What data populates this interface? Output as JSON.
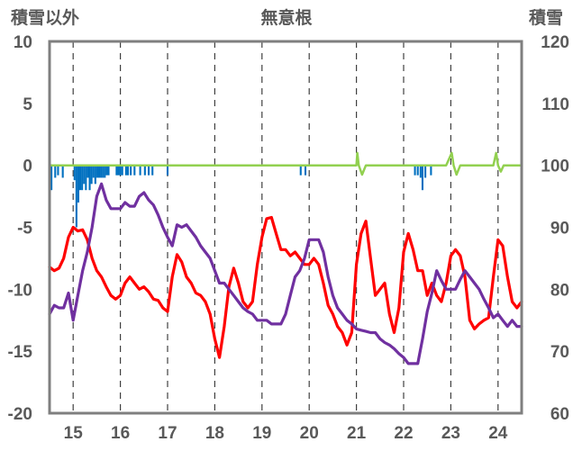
{
  "chart_data": {
    "type": "line",
    "title": "無意根",
    "left_axis": {
      "label": "積雪以外",
      "ylim": [
        -20,
        10
      ],
      "ticks": [
        10,
        5,
        0,
        -5,
        -10,
        -15,
        -20
      ]
    },
    "right_axis": {
      "label": "積雪",
      "ylim": [
        60,
        120
      ],
      "ticks": [
        120,
        110,
        100,
        90,
        80,
        70,
        60
      ]
    },
    "x_axis": {
      "range": [
        14.5,
        24.5
      ],
      "tick_values": [
        15,
        16,
        17,
        18,
        19,
        20,
        21,
        22,
        23,
        24
      ],
      "tick_labels": [
        "15",
        "16",
        "17",
        "18",
        "19",
        "20",
        "21",
        "22",
        "23",
        "24"
      ]
    },
    "grid": "vertical dashed lines at each day",
    "colors": {
      "red": "#ff0000",
      "purple": "#7030a0",
      "green": "#92d050",
      "blue": "#0070c0",
      "frame": "#7f7f7f"
    },
    "series": [
      {
        "axis": "left",
        "color": "#ff0000",
        "style": "line",
        "points": [
          [
            14.5,
            -8.2
          ],
          [
            14.6,
            -8.5
          ],
          [
            14.7,
            -8.3
          ],
          [
            14.8,
            -7.5
          ],
          [
            14.9,
            -5.8
          ],
          [
            15.0,
            -5.0
          ],
          [
            15.1,
            -5.3
          ],
          [
            15.2,
            -5.2
          ],
          [
            15.3,
            -6.0
          ],
          [
            15.4,
            -7.5
          ],
          [
            15.5,
            -8.5
          ],
          [
            15.6,
            -9.0
          ],
          [
            15.7,
            -9.8
          ],
          [
            15.8,
            -10.5
          ],
          [
            15.9,
            -10.8
          ],
          [
            16.0,
            -10.5
          ],
          [
            16.1,
            -9.5
          ],
          [
            16.2,
            -9.0
          ],
          [
            16.3,
            -9.5
          ],
          [
            16.4,
            -10.0
          ],
          [
            16.5,
            -9.8
          ],
          [
            16.6,
            -10.2
          ],
          [
            16.7,
            -10.8
          ],
          [
            16.8,
            -10.9
          ],
          [
            16.9,
            -11.5
          ],
          [
            17.0,
            -11.8
          ],
          [
            17.1,
            -9.0
          ],
          [
            17.2,
            -7.2
          ],
          [
            17.3,
            -7.8
          ],
          [
            17.4,
            -9.0
          ],
          [
            17.5,
            -9.5
          ],
          [
            17.6,
            -10.3
          ],
          [
            17.7,
            -10.5
          ],
          [
            17.8,
            -11.0
          ],
          [
            17.9,
            -12.0
          ],
          [
            18.0,
            -14.0
          ],
          [
            18.1,
            -15.5
          ],
          [
            18.2,
            -13.0
          ],
          [
            18.3,
            -9.8
          ],
          [
            18.4,
            -8.3
          ],
          [
            18.5,
            -9.5
          ],
          [
            18.6,
            -11.0
          ],
          [
            18.7,
            -11.5
          ],
          [
            18.8,
            -11.0
          ],
          [
            18.9,
            -8.0
          ],
          [
            19.0,
            -5.8
          ],
          [
            19.1,
            -4.3
          ],
          [
            19.2,
            -4.2
          ],
          [
            19.3,
            -5.5
          ],
          [
            19.4,
            -6.8
          ],
          [
            19.5,
            -6.8
          ],
          [
            19.6,
            -7.3
          ],
          [
            19.7,
            -7.0
          ],
          [
            19.8,
            -7.5
          ],
          [
            19.9,
            -8.0
          ],
          [
            20.0,
            -8.0
          ],
          [
            20.1,
            -7.5
          ],
          [
            20.2,
            -8.0
          ],
          [
            20.3,
            -9.5
          ],
          [
            20.4,
            -11.3
          ],
          [
            20.5,
            -12.0
          ],
          [
            20.6,
            -13.0
          ],
          [
            20.7,
            -13.5
          ],
          [
            20.8,
            -14.5
          ],
          [
            20.9,
            -13.5
          ],
          [
            21.0,
            -8.0
          ],
          [
            21.1,
            -5.5
          ],
          [
            21.2,
            -4.5
          ],
          [
            21.3,
            -7.5
          ],
          [
            21.4,
            -10.5
          ],
          [
            21.5,
            -10.0
          ],
          [
            21.6,
            -9.5
          ],
          [
            21.7,
            -12.0
          ],
          [
            21.8,
            -13.5
          ],
          [
            21.9,
            -11.5
          ],
          [
            22.0,
            -7.0
          ],
          [
            22.1,
            -5.5
          ],
          [
            22.2,
            -6.8
          ],
          [
            22.3,
            -8.5
          ],
          [
            22.4,
            -8.5
          ],
          [
            22.5,
            -10.5
          ],
          [
            22.6,
            -9.5
          ],
          [
            22.7,
            -10.5
          ],
          [
            22.8,
            -11.0
          ],
          [
            22.9,
            -9.5
          ],
          [
            23.0,
            -7.3
          ],
          [
            23.1,
            -6.8
          ],
          [
            23.2,
            -7.3
          ],
          [
            23.3,
            -9.0
          ],
          [
            23.4,
            -12.5
          ],
          [
            23.5,
            -13.2
          ],
          [
            23.6,
            -12.8
          ],
          [
            23.7,
            -12.5
          ],
          [
            23.8,
            -12.3
          ],
          [
            23.9,
            -9.0
          ],
          [
            24.0,
            -6.0
          ],
          [
            24.1,
            -6.5
          ],
          [
            24.2,
            -9.0
          ],
          [
            24.3,
            -11.0
          ],
          [
            24.4,
            -11.5
          ],
          [
            24.5,
            -11.0
          ]
        ]
      },
      {
        "axis": "left",
        "color": "#7030a0",
        "style": "line",
        "points": [
          [
            14.5,
            -12.0
          ],
          [
            14.6,
            -11.3
          ],
          [
            14.7,
            -11.5
          ],
          [
            14.8,
            -11.5
          ],
          [
            14.9,
            -10.3
          ],
          [
            15.0,
            -12.5
          ],
          [
            15.1,
            -10.5
          ],
          [
            15.2,
            -8.5
          ],
          [
            15.3,
            -7.0
          ],
          [
            15.4,
            -5.0
          ],
          [
            15.5,
            -2.5
          ],
          [
            15.6,
            -1.5
          ],
          [
            15.7,
            -2.8
          ],
          [
            15.8,
            -3.5
          ],
          [
            15.9,
            -3.5
          ],
          [
            16.0,
            -3.5
          ],
          [
            16.1,
            -3.0
          ],
          [
            16.2,
            -3.3
          ],
          [
            16.3,
            -3.3
          ],
          [
            16.4,
            -2.5
          ],
          [
            16.5,
            -2.2
          ],
          [
            16.6,
            -2.8
          ],
          [
            16.7,
            -3.2
          ],
          [
            16.8,
            -4.0
          ],
          [
            16.9,
            -5.0
          ],
          [
            17.0,
            -5.8
          ],
          [
            17.1,
            -6.5
          ],
          [
            17.2,
            -4.8
          ],
          [
            17.3,
            -5.0
          ],
          [
            17.4,
            -4.8
          ],
          [
            17.5,
            -5.3
          ],
          [
            17.6,
            -5.8
          ],
          [
            17.7,
            -6.5
          ],
          [
            17.8,
            -7.0
          ],
          [
            17.9,
            -7.5
          ],
          [
            18.0,
            -8.5
          ],
          [
            18.1,
            -9.5
          ],
          [
            18.2,
            -9.5
          ],
          [
            18.3,
            -10.0
          ],
          [
            18.4,
            -10.5
          ],
          [
            18.5,
            -11.0
          ],
          [
            18.6,
            -11.5
          ],
          [
            18.7,
            -11.8
          ],
          [
            18.8,
            -12.0
          ],
          [
            18.9,
            -12.5
          ],
          [
            19.0,
            -12.5
          ],
          [
            19.1,
            -12.5
          ],
          [
            19.2,
            -12.8
          ],
          [
            19.3,
            -12.8
          ],
          [
            19.4,
            -12.8
          ],
          [
            19.5,
            -12.0
          ],
          [
            19.6,
            -10.5
          ],
          [
            19.7,
            -9.0
          ],
          [
            19.8,
            -8.5
          ],
          [
            19.9,
            -7.5
          ],
          [
            20.0,
            -6.0
          ],
          [
            20.1,
            -6.0
          ],
          [
            20.2,
            -6.0
          ],
          [
            20.3,
            -7.0
          ],
          [
            20.4,
            -9.0
          ],
          [
            20.5,
            -10.5
          ],
          [
            20.6,
            -11.5
          ],
          [
            20.7,
            -12.0
          ],
          [
            20.8,
            -12.5
          ],
          [
            20.9,
            -12.8
          ],
          [
            21.0,
            -13.2
          ],
          [
            21.1,
            -13.3
          ],
          [
            21.2,
            -13.4
          ],
          [
            21.3,
            -13.5
          ],
          [
            21.4,
            -13.5
          ],
          [
            21.5,
            -14.0
          ],
          [
            21.6,
            -14.3
          ],
          [
            21.7,
            -14.5
          ],
          [
            21.8,
            -14.8
          ],
          [
            21.9,
            -15.2
          ],
          [
            22.0,
            -15.5
          ],
          [
            22.1,
            -16.0
          ],
          [
            22.2,
            -16.0
          ],
          [
            22.3,
            -16.0
          ],
          [
            22.4,
            -14.0
          ],
          [
            22.5,
            -11.8
          ],
          [
            22.6,
            -10.3
          ],
          [
            22.7,
            -8.5
          ],
          [
            22.8,
            -9.3
          ],
          [
            22.9,
            -10.0
          ],
          [
            23.0,
            -10.0
          ],
          [
            23.1,
            -10.0
          ],
          [
            23.2,
            -9.2
          ],
          [
            23.3,
            -8.5
          ],
          [
            23.4,
            -9.0
          ],
          [
            23.5,
            -9.5
          ],
          [
            23.6,
            -10.0
          ],
          [
            23.7,
            -10.8
          ],
          [
            23.8,
            -11.5
          ],
          [
            23.9,
            -12.3
          ],
          [
            24.0,
            -12.0
          ],
          [
            24.1,
            -12.5
          ],
          [
            24.2,
            -13.0
          ],
          [
            24.3,
            -12.5
          ],
          [
            24.4,
            -13.0
          ],
          [
            24.5,
            -13.0
          ]
        ]
      },
      {
        "axis": "right",
        "color": "#92d050",
        "style": "line",
        "points": [
          [
            14.5,
            100
          ],
          [
            21.0,
            100
          ],
          [
            21.02,
            102
          ],
          [
            21.05,
            100
          ],
          [
            21.12,
            98.5
          ],
          [
            21.2,
            100
          ],
          [
            22.9,
            100
          ],
          [
            23.02,
            102
          ],
          [
            23.06,
            100
          ],
          [
            23.12,
            98.5
          ],
          [
            23.2,
            100
          ],
          [
            23.9,
            100
          ],
          [
            23.96,
            102
          ],
          [
            24.0,
            100
          ],
          [
            24.06,
            99.0
          ],
          [
            24.12,
            100
          ],
          [
            24.5,
            100
          ]
        ]
      },
      {
        "axis": "left",
        "color": "#0070c0",
        "style": "bars",
        "bar_width_days": 0.04,
        "points": [
          [
            14.54,
            -2.0
          ],
          [
            14.62,
            -1.0
          ],
          [
            14.68,
            -0.8
          ],
          [
            14.78,
            -1.0
          ],
          [
            15.03,
            -1.2
          ],
          [
            15.07,
            -5.0
          ],
          [
            15.11,
            -3.0
          ],
          [
            15.15,
            -2.0
          ],
          [
            15.19,
            -2.0
          ],
          [
            15.23,
            -1.5
          ],
          [
            15.27,
            -2.0
          ],
          [
            15.31,
            -1.0
          ],
          [
            15.35,
            -2.0
          ],
          [
            15.39,
            -1.5
          ],
          [
            15.43,
            -1.0
          ],
          [
            15.47,
            -1.5
          ],
          [
            15.51,
            -1.0
          ],
          [
            15.55,
            -1.0
          ],
          [
            15.59,
            -1.0
          ],
          [
            15.63,
            -1.0
          ],
          [
            15.67,
            -1.0
          ],
          [
            15.71,
            -0.8
          ],
          [
            15.75,
            -0.8
          ],
          [
            15.92,
            -0.8
          ],
          [
            15.96,
            -0.8
          ],
          [
            16.0,
            -0.8
          ],
          [
            16.04,
            -0.8
          ],
          [
            16.12,
            -0.8
          ],
          [
            16.16,
            -0.8
          ],
          [
            16.22,
            -0.8
          ],
          [
            16.3,
            -0.8
          ],
          [
            16.42,
            -0.8
          ],
          [
            16.52,
            -0.8
          ],
          [
            16.6,
            -0.8
          ],
          [
            16.68,
            -0.8
          ],
          [
            17.0,
            -0.8
          ],
          [
            19.82,
            -0.8
          ],
          [
            19.92,
            -0.8
          ],
          [
            22.24,
            -0.8
          ],
          [
            22.3,
            -0.8
          ],
          [
            22.36,
            -1.0
          ],
          [
            22.4,
            -2.0
          ],
          [
            22.46,
            -1.0
          ],
          [
            22.58,
            -0.8
          ]
        ]
      }
    ]
  }
}
